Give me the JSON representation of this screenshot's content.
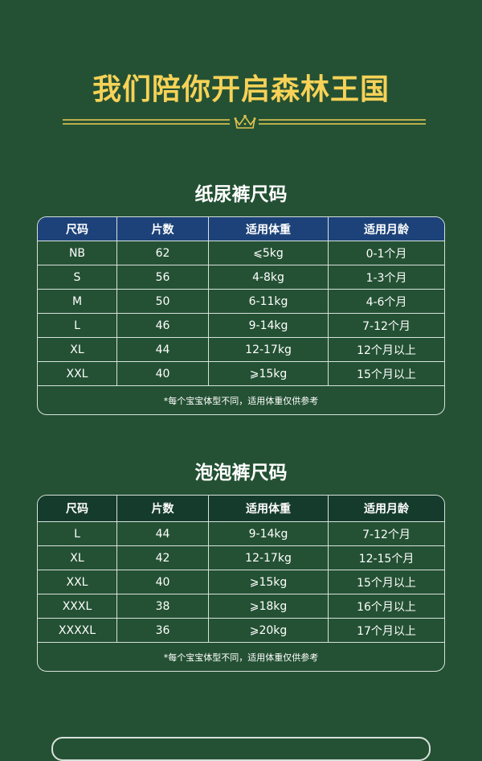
{
  "title": "我们陪你开启森林王国",
  "crown_icon": "crown-icon",
  "colors": {
    "background": "#245134",
    "title": "#f7d257",
    "table1_header": "#1c4279",
    "table2_header": "#153b2d"
  },
  "diaper": {
    "heading": "纸尿裤尺码",
    "columns": [
      "尺码",
      "片数",
      "适用体重",
      "适用月龄"
    ],
    "rows": [
      [
        "NB",
        "62",
        "⩽5kg",
        "0-1个月"
      ],
      [
        "S",
        "56",
        "4-8kg",
        "1-3个月"
      ],
      [
        "M",
        "50",
        "6-11kg",
        "4-6个月"
      ],
      [
        "L",
        "46",
        "9-14kg",
        "7-12个月"
      ],
      [
        "XL",
        "44",
        "12-17kg",
        "12个月以上"
      ],
      [
        "XXL",
        "40",
        "⩾15kg",
        "15个月以上"
      ]
    ],
    "note": "*每个宝宝体型不同，适用体重仅供参考"
  },
  "pullup": {
    "heading": "泡泡裤尺码",
    "columns": [
      "尺码",
      "片数",
      "适用体重",
      "适用月龄"
    ],
    "rows": [
      [
        "L",
        "44",
        "9-14kg",
        "7-12个月"
      ],
      [
        "XL",
        "42",
        "12-17kg",
        "12-15个月"
      ],
      [
        "XXL",
        "40",
        "⩾15kg",
        "15个月以上"
      ],
      [
        "XXXL",
        "38",
        "⩾18kg",
        "16个月以上"
      ],
      [
        "XXXXL",
        "36",
        "⩾20kg",
        "17个月以上"
      ]
    ],
    "note": "*每个宝宝体型不同，适用体重仅供参考"
  }
}
